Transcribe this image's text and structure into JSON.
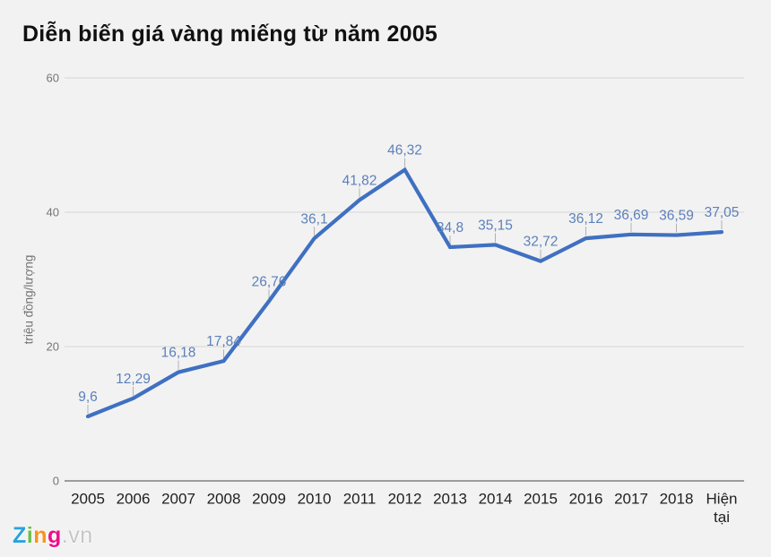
{
  "page": {
    "background": "#f2f2f2"
  },
  "chart_data": {
    "type": "line",
    "title": "Diễn biến giá vàng miếng từ năm 2005",
    "xlabel": "",
    "ylabel": "triệu đồng/lượng",
    "categories": [
      "2005",
      "2006",
      "2007",
      "2008",
      "2009",
      "2010",
      "2011",
      "2012",
      "2013",
      "2014",
      "2015",
      "2016",
      "2017",
      "2018",
      "Hiện tại"
    ],
    "values": [
      9.6,
      12.29,
      16.18,
      17.84,
      26.76,
      36.1,
      41.82,
      46.32,
      34.8,
      35.15,
      32.72,
      36.12,
      36.69,
      36.59,
      37.05
    ],
    "point_labels": [
      "9,6",
      "12,29",
      "16,18",
      "17,84",
      "26,76",
      "36,1",
      "41,82",
      "46,32",
      "34,8",
      "35,15",
      "32,72",
      "36,12",
      "36,69",
      "36,59",
      "37,05"
    ],
    "yticks": [
      0,
      20,
      40,
      60
    ],
    "ylim": [
      0,
      60
    ],
    "grid": true,
    "legend": "none",
    "colors": {
      "line": "#3f70c1",
      "annotation": "#5c80ba",
      "ytick_text": "#757575",
      "xtick_text": "#1f1f1f",
      "gridline": "#dcdcdc",
      "baseline": "#8f8f8f",
      "leader": "#aaaaaa"
    }
  },
  "logo": {
    "letters": [
      {
        "ch": "Z",
        "color": "#29a3dd"
      },
      {
        "ch": "i",
        "color": "#6abf4b"
      },
      {
        "ch": "n",
        "color": "#f7941d"
      },
      {
        "ch": "g",
        "color": "#ec0f8c"
      }
    ],
    "suffix": ".vn",
    "suffix_color": "#c6c6c6"
  }
}
